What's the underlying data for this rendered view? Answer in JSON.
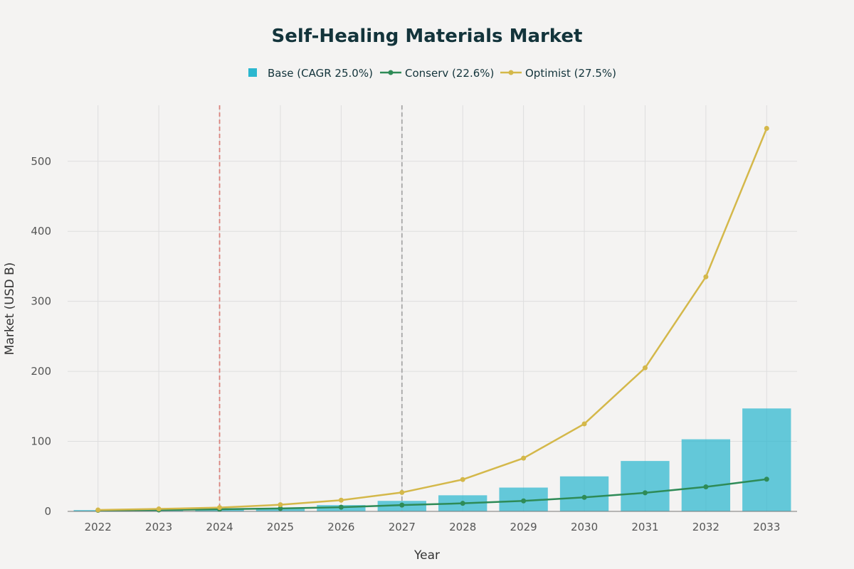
{
  "chart_data": {
    "type": "bar+line",
    "title": "Self-Healing Materials Market",
    "xlabel": "Year",
    "ylabel": "Market (USD B)",
    "categories": [
      "2022",
      "2023",
      "2024",
      "2025",
      "2026",
      "2027",
      "2028",
      "2029",
      "2030",
      "2031",
      "2032",
      "2033"
    ],
    "ylim": [
      0,
      580
    ],
    "yticks": [
      0,
      100,
      200,
      300,
      400,
      500
    ],
    "grid": true,
    "legend_position": "top-center",
    "series": [
      {
        "name": "Base (CAGR 25.0%)",
        "kind": "bar",
        "color": "#2bb7cf",
        "values": [
          1.9,
          2.4,
          3.0,
          4.6,
          9.0,
          15.0,
          23.0,
          34.0,
          50.0,
          72.0,
          103.0,
          147.0
        ]
      },
      {
        "name": "Conserv (22.6%)",
        "kind": "line",
        "color": "#2e8b57",
        "values": [
          1.5,
          2.0,
          3.0,
          4.2,
          6.0,
          9.0,
          11.5,
          15.0,
          20.0,
          26.5,
          35.0,
          46.0
        ]
      },
      {
        "name": "Optimist (27.5%)",
        "kind": "line",
        "color": "#d4b84a",
        "values": [
          2.0,
          3.5,
          5.5,
          9.5,
          16.0,
          27.0,
          45.5,
          76.0,
          125.0,
          205.0,
          335.0,
          547.0
        ]
      }
    ],
    "vlines": [
      {
        "x": "2024",
        "color": "#d9837d"
      },
      {
        "x": "2027",
        "color": "#a7a7a7"
      }
    ]
  }
}
